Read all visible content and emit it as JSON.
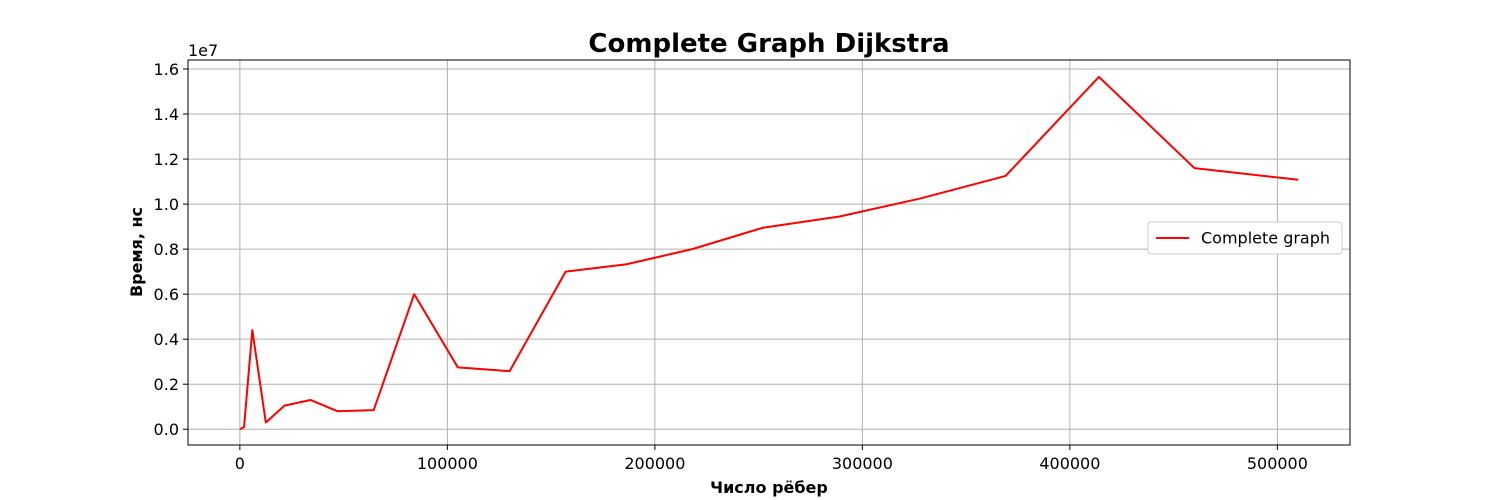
{
  "chart_data": {
    "type": "line",
    "title": "Complete Graph Dijkstra",
    "xlabel": "Число рёбер",
    "ylabel": "Время, нс",
    "y_offset_label": "1e7",
    "xlim": [
      -25000,
      535000
    ],
    "ylim": [
      -0.07,
      1.64
    ],
    "x_ticks": [
      0,
      100000,
      200000,
      300000,
      400000,
      500000
    ],
    "x_tick_labels": [
      "0",
      "100000",
      "200000",
      "300000",
      "400000",
      "500000"
    ],
    "y_ticks": [
      0.0,
      0.2,
      0.4,
      0.6,
      0.8,
      1.0,
      1.2,
      1.4,
      1.6
    ],
    "y_tick_labels": [
      "0.0",
      "0.2",
      "0.4",
      "0.6",
      "0.8",
      "1.0",
      "1.2",
      "1.4",
      "1.6"
    ],
    "grid": true,
    "legend_position": "center-right",
    "series": [
      {
        "name": "Complete graph",
        "color": "#ff0000",
        "x": [
          0,
          2000,
          6000,
          12500,
          21500,
          34000,
          47000,
          64500,
          84000,
          105000,
          130000,
          157000,
          186000,
          218000,
          252000,
          289000,
          328000,
          369000,
          414000,
          460000,
          510000
        ],
        "y": [
          0.0,
          0.01,
          0.44,
          0.03,
          0.105,
          0.13,
          0.08,
          0.085,
          0.6,
          0.275,
          0.258,
          0.7,
          0.732,
          0.8,
          0.895,
          0.945,
          1.025,
          1.125,
          1.565,
          1.16,
          1.108
        ]
      }
    ]
  }
}
